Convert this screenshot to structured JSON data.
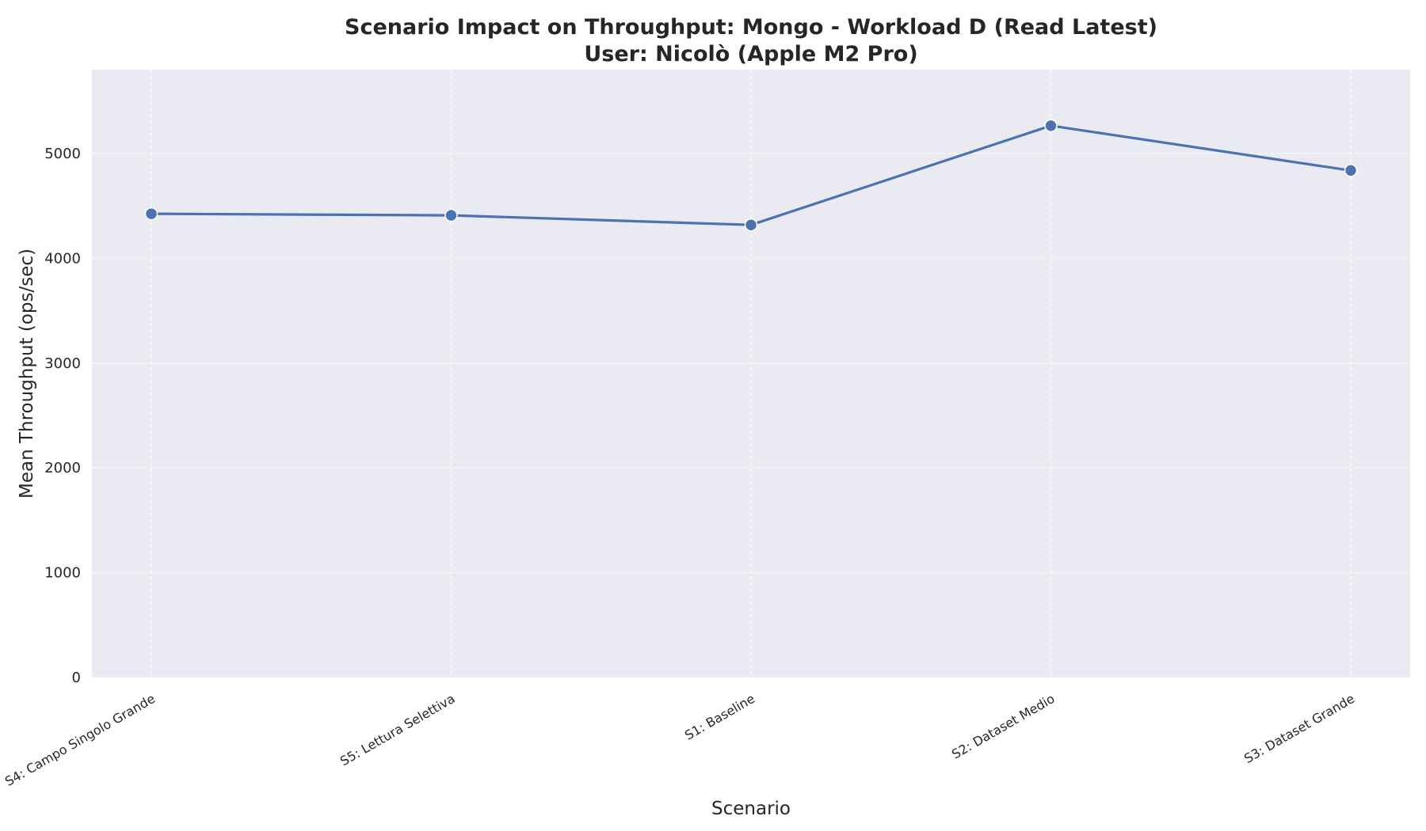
{
  "chart_data": {
    "type": "line",
    "title": "Scenario Impact on Throughput: Mongo - Workload D (Read Latest)",
    "subtitle": "User: Nicolò (Apple M2 Pro)",
    "xlabel": "Scenario",
    "ylabel": "Mean Throughput (ops/sec)",
    "categories": [
      "S4: Campo Singolo Grande",
      "S5: Lettura Selettiva",
      "S1: Baseline",
      "S2: Dataset Medio",
      "S3: Dataset Grande"
    ],
    "series": [
      {
        "name": "Mean Throughput",
        "values": [
          4425,
          4410,
          4318,
          5265,
          4838
        ]
      }
    ],
    "ylim": [
      0,
      5800
    ],
    "yticks": [
      0,
      1000,
      2000,
      3000,
      4000,
      5000
    ],
    "ytick_labels": [
      "0",
      "1000",
      "2000",
      "3000",
      "4000",
      "5000"
    ],
    "grid": true,
    "colors": {
      "line": "#4c72b0",
      "plot_bg": "#eaeaf2",
      "grid": "#ffffff",
      "marker_edge": "#ffffff"
    }
  }
}
